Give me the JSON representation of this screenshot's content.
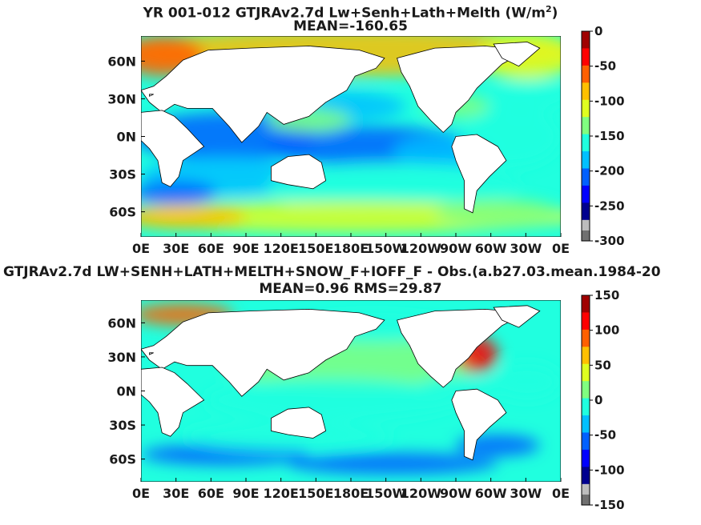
{
  "chart_data": [
    {
      "type": "heatmap",
      "title_line1": "YR 001-012 GTJRAv2.7d Lw+Senh+Lath+Melth (W/m",
      "title_sup": "2",
      "title_close": ")",
      "title_line2": "MEAN=-160.65",
      "xticks": [
        "0E",
        "30E",
        "60E",
        "90E",
        "120E",
        "150E",
        "180E",
        "150W",
        "120W",
        "90W",
        "60W",
        "30W",
        "0E"
      ],
      "yticks": [
        "60N",
        "30N",
        "0N",
        "30S",
        "60S"
      ],
      "colorbar": {
        "range": [
          -300,
          0
        ],
        "ticks": [
          "0",
          "-50",
          "-100",
          "-150",
          "-200",
          "-250",
          "-300"
        ]
      }
    },
    {
      "type": "heatmap",
      "title_line1": "GTJRAv2.7d LW+SENH+LATH+MELTH+SNOW_F+IOFF_F - Obs.(a.b27.03.mean.1984-20",
      "title_line2": "MEAN=0.96 RMS=29.87",
      "xticks": [
        "0E",
        "30E",
        "60E",
        "90E",
        "120E",
        "150E",
        "180E",
        "150W",
        "120W",
        "90W",
        "60W",
        "30W",
        "0E"
      ],
      "yticks": [
        "60N",
        "30N",
        "0N",
        "30S",
        "60S"
      ],
      "colorbar": {
        "range": [
          -150,
          150
        ],
        "ticks": [
          "150",
          "100",
          "50",
          "0",
          "-50",
          "-100",
          "-150"
        ]
      }
    }
  ],
  "colors": {
    "jet": [
      "#00008f",
      "#0000ff",
      "#0060ff",
      "#00c0ff",
      "#20ffdf",
      "#80ff80",
      "#dfff20",
      "#ffc000",
      "#ff6000",
      "#ff0000",
      "#a00000"
    ],
    "land": "#ffffff",
    "undef": "#bdbdbd",
    "undef_dark": "#707070"
  }
}
